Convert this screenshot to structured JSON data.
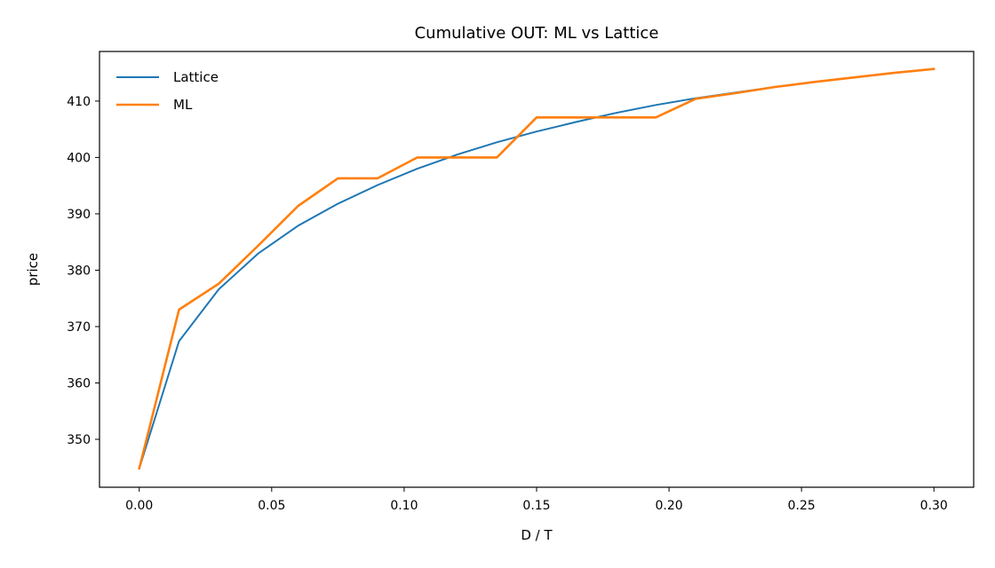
{
  "chart_data": {
    "type": "line",
    "title": "Cumulative OUT: ML vs Lattice",
    "xlabel": "D / T",
    "ylabel": "price",
    "xlim": [
      -0.015,
      0.315
    ],
    "ylim": [
      341.5,
      418.8
    ],
    "xticks": [
      0.0,
      0.05,
      0.1,
      0.15,
      0.2,
      0.25,
      0.3
    ],
    "xtick_labels": [
      "0.00",
      "0.05",
      "0.10",
      "0.15",
      "0.20",
      "0.25",
      "0.30"
    ],
    "yticks": [
      350,
      360,
      370,
      380,
      390,
      400,
      410
    ],
    "ytick_labels": [
      "350",
      "360",
      "370",
      "380",
      "390",
      "400",
      "410"
    ],
    "grid": false,
    "legend_position": "top-left",
    "x": [
      0.0,
      0.015,
      0.03,
      0.045,
      0.06,
      0.075,
      0.09,
      0.105,
      0.12,
      0.135,
      0.15,
      0.165,
      0.18,
      0.195,
      0.21,
      0.225,
      0.24,
      0.255,
      0.27,
      0.285,
      0.3
    ],
    "series": [
      {
        "name": "Lattice",
        "color": "#1f77b4",
        "values": [
          344.8,
          367.4,
          376.6,
          383.0,
          387.9,
          391.8,
          395.1,
          398.0,
          400.5,
          402.7,
          404.6,
          406.3,
          407.9,
          409.3,
          410.5,
          411.5,
          412.5,
          413.4,
          414.2,
          415.0,
          415.7
        ]
      },
      {
        "name": "ML",
        "color": "#ff7f0e",
        "values": [
          344.8,
          373.0,
          377.6,
          384.4,
          391.4,
          396.3,
          396.3,
          400.0,
          400.0,
          400.0,
          407.1,
          407.1,
          407.1,
          407.1,
          410.4,
          411.4,
          412.5,
          413.4,
          414.2,
          415.0,
          415.7
        ]
      }
    ]
  }
}
